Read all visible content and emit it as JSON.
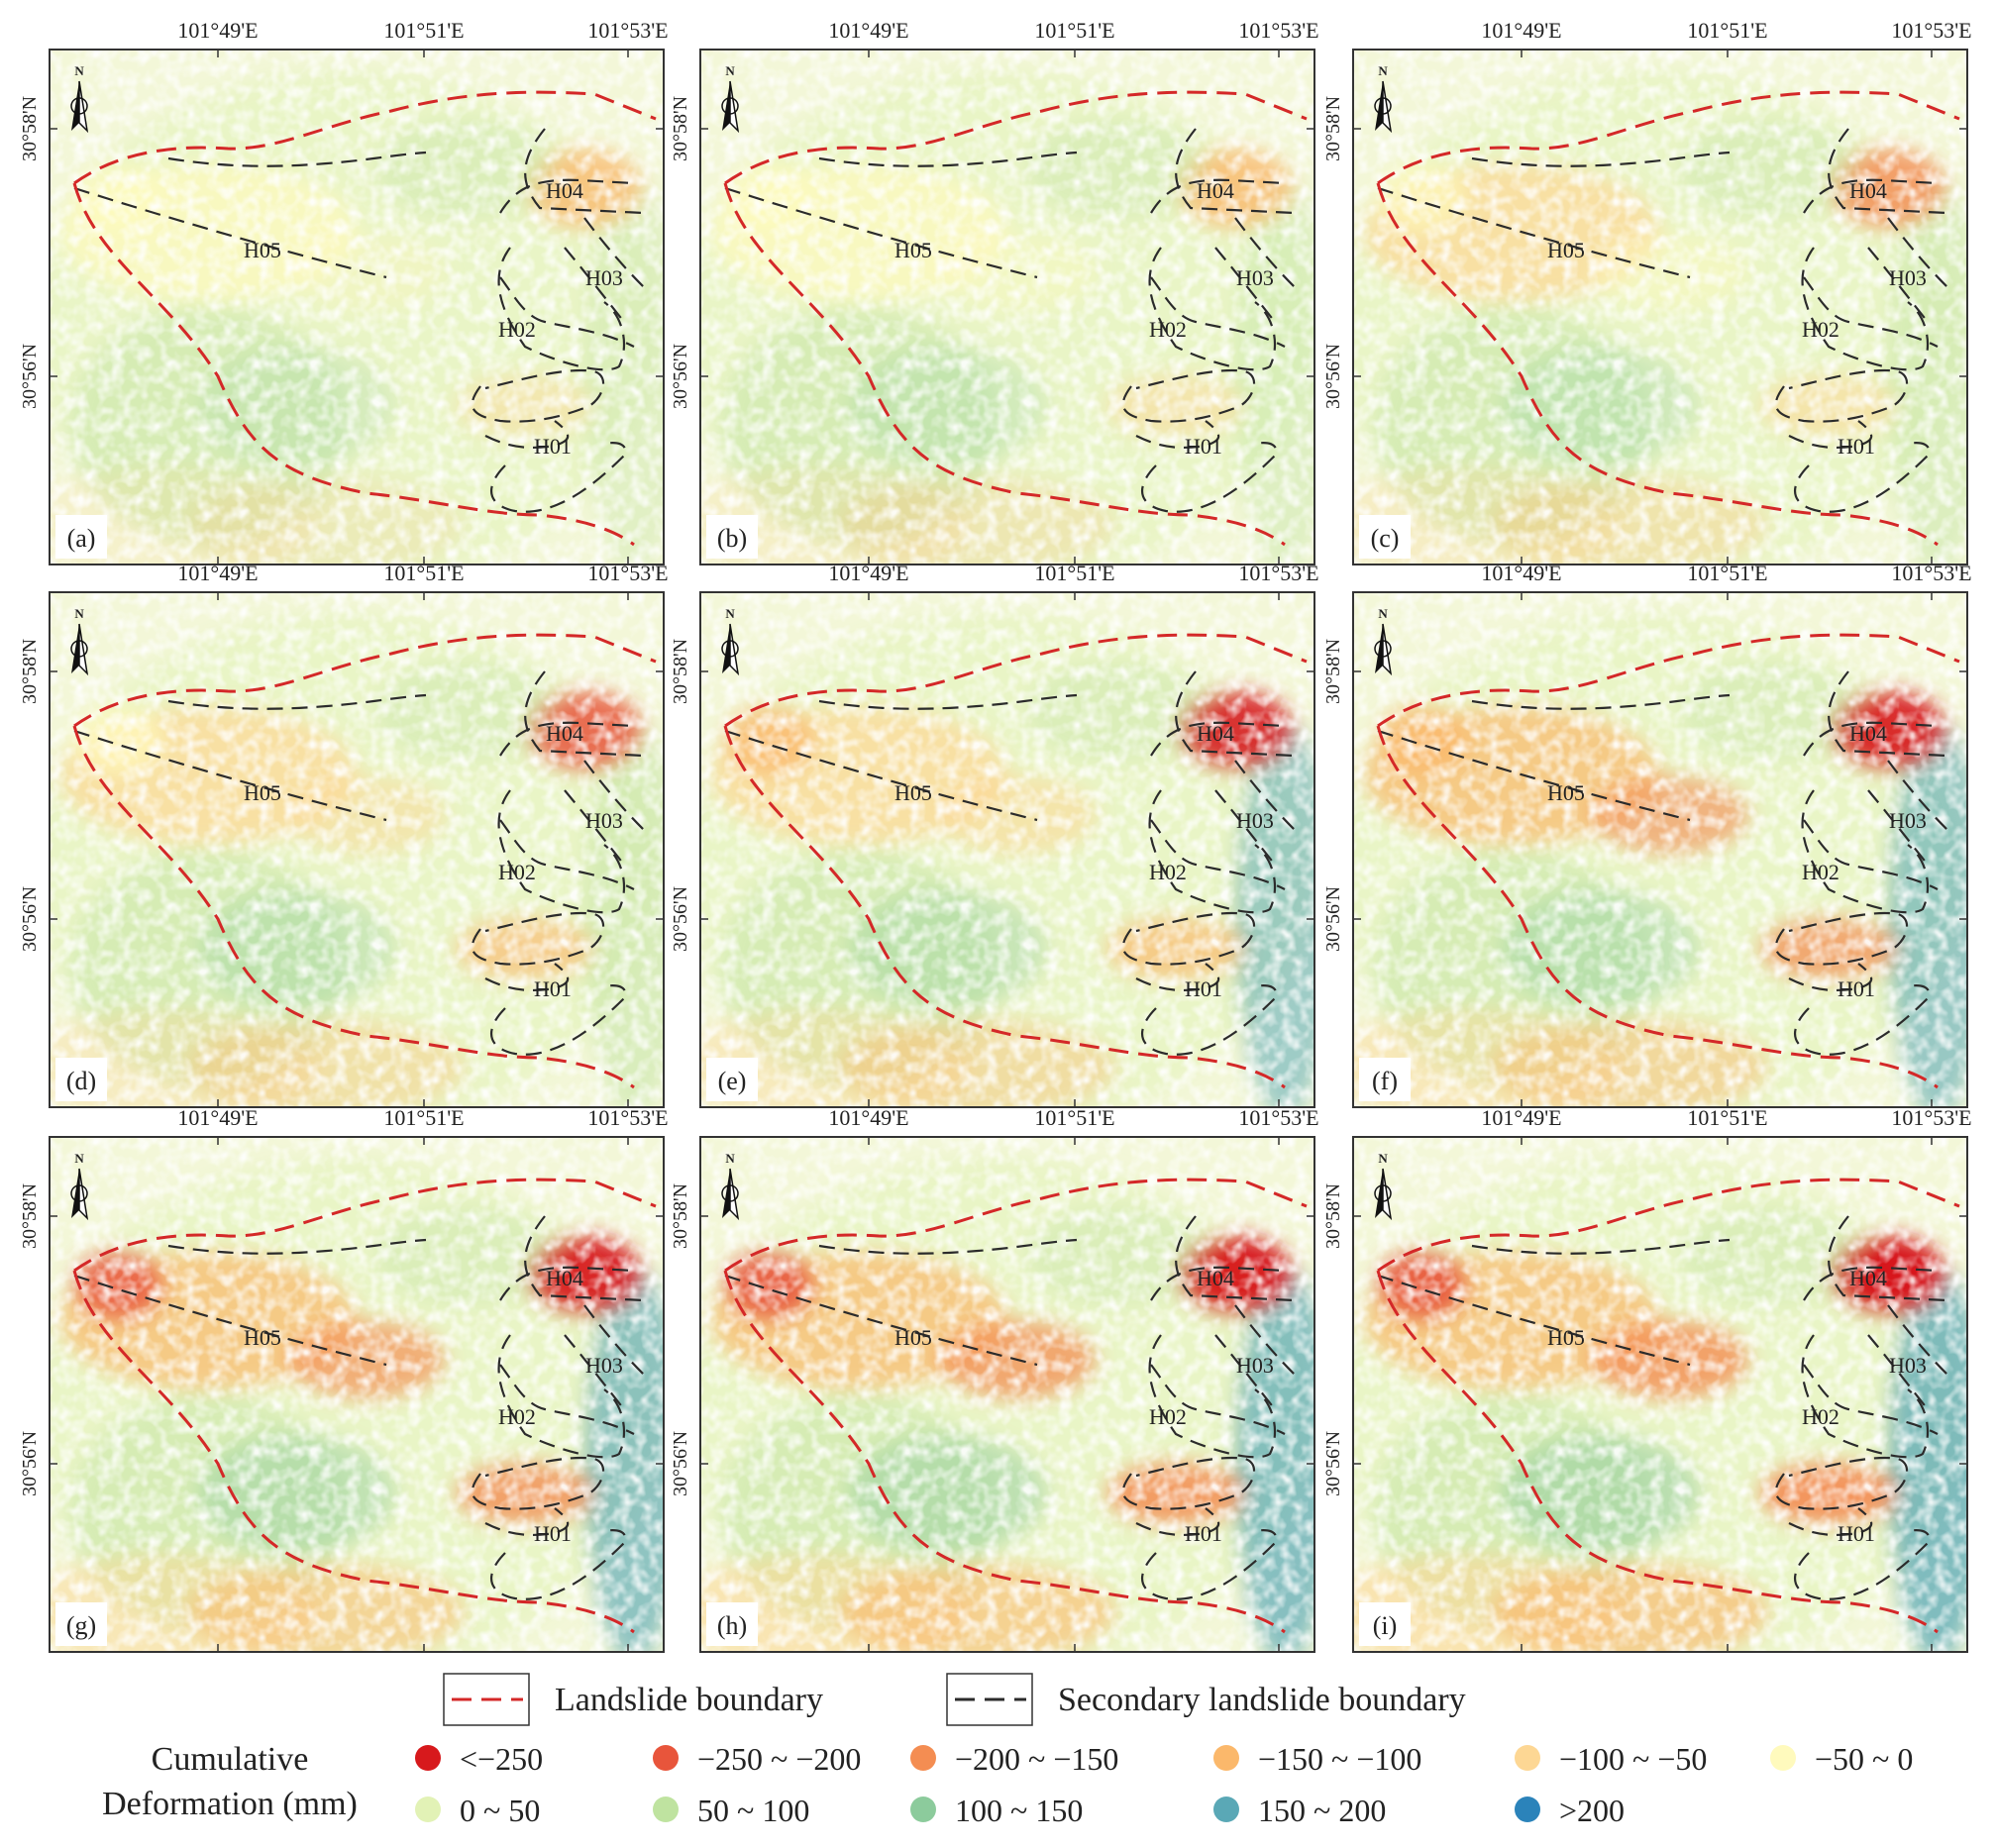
{
  "axes": {
    "lon_ticks": [
      "101°49'E",
      "101°51'E",
      "101°53'E"
    ],
    "lat_ticks": [
      "30°58'N",
      "30°56'N"
    ]
  },
  "north_arrow": {
    "label": "N",
    "icon": "north-arrow-icon"
  },
  "region_labels": [
    "H01",
    "H02",
    "H03",
    "H04",
    "H05"
  ],
  "panels": [
    {
      "id": "(a)",
      "level": 1
    },
    {
      "id": "(b)",
      "level": 2
    },
    {
      "id": "(c)",
      "level": 3
    },
    {
      "id": "(d)",
      "level": 4
    },
    {
      "id": "(e)",
      "level": 5
    },
    {
      "id": "(f)",
      "level": 6
    },
    {
      "id": "(g)",
      "level": 7
    },
    {
      "id": "(h)",
      "level": 8
    },
    {
      "id": "(i)",
      "level": 9
    }
  ],
  "legend": {
    "boundary": {
      "landslide": "Landslide boundary",
      "secondary": "Secondary landslide boundary",
      "landslide_color": "#d42828",
      "secondary_color": "#2b2b2b"
    },
    "title_line1": "Cumulative",
    "title_line2": "Deformation (mm)",
    "classes": [
      {
        "label": "<−250",
        "color": "#d7191c"
      },
      {
        "label": "−250 ~ −200",
        "color": "#e8553b"
      },
      {
        "label": "−200 ~ −150",
        "color": "#f48d52"
      },
      {
        "label": "−150 ~ −100",
        "color": "#fbb86b"
      },
      {
        "label": "−100 ~ −50",
        "color": "#fdd794"
      },
      {
        "label": "−50 ~ 0",
        "color": "#fffabd"
      },
      {
        "label": "0 ~ 50",
        "color": "#e2f2b6"
      },
      {
        "label": "50 ~ 100",
        "color": "#bfe3a0"
      },
      {
        "label": "100 ~ 150",
        "color": "#8ccb9c"
      },
      {
        "label": "150 ~ 200",
        "color": "#5aa8b6"
      },
      {
        "label": ">200",
        "color": "#2b83ba"
      }
    ]
  }
}
